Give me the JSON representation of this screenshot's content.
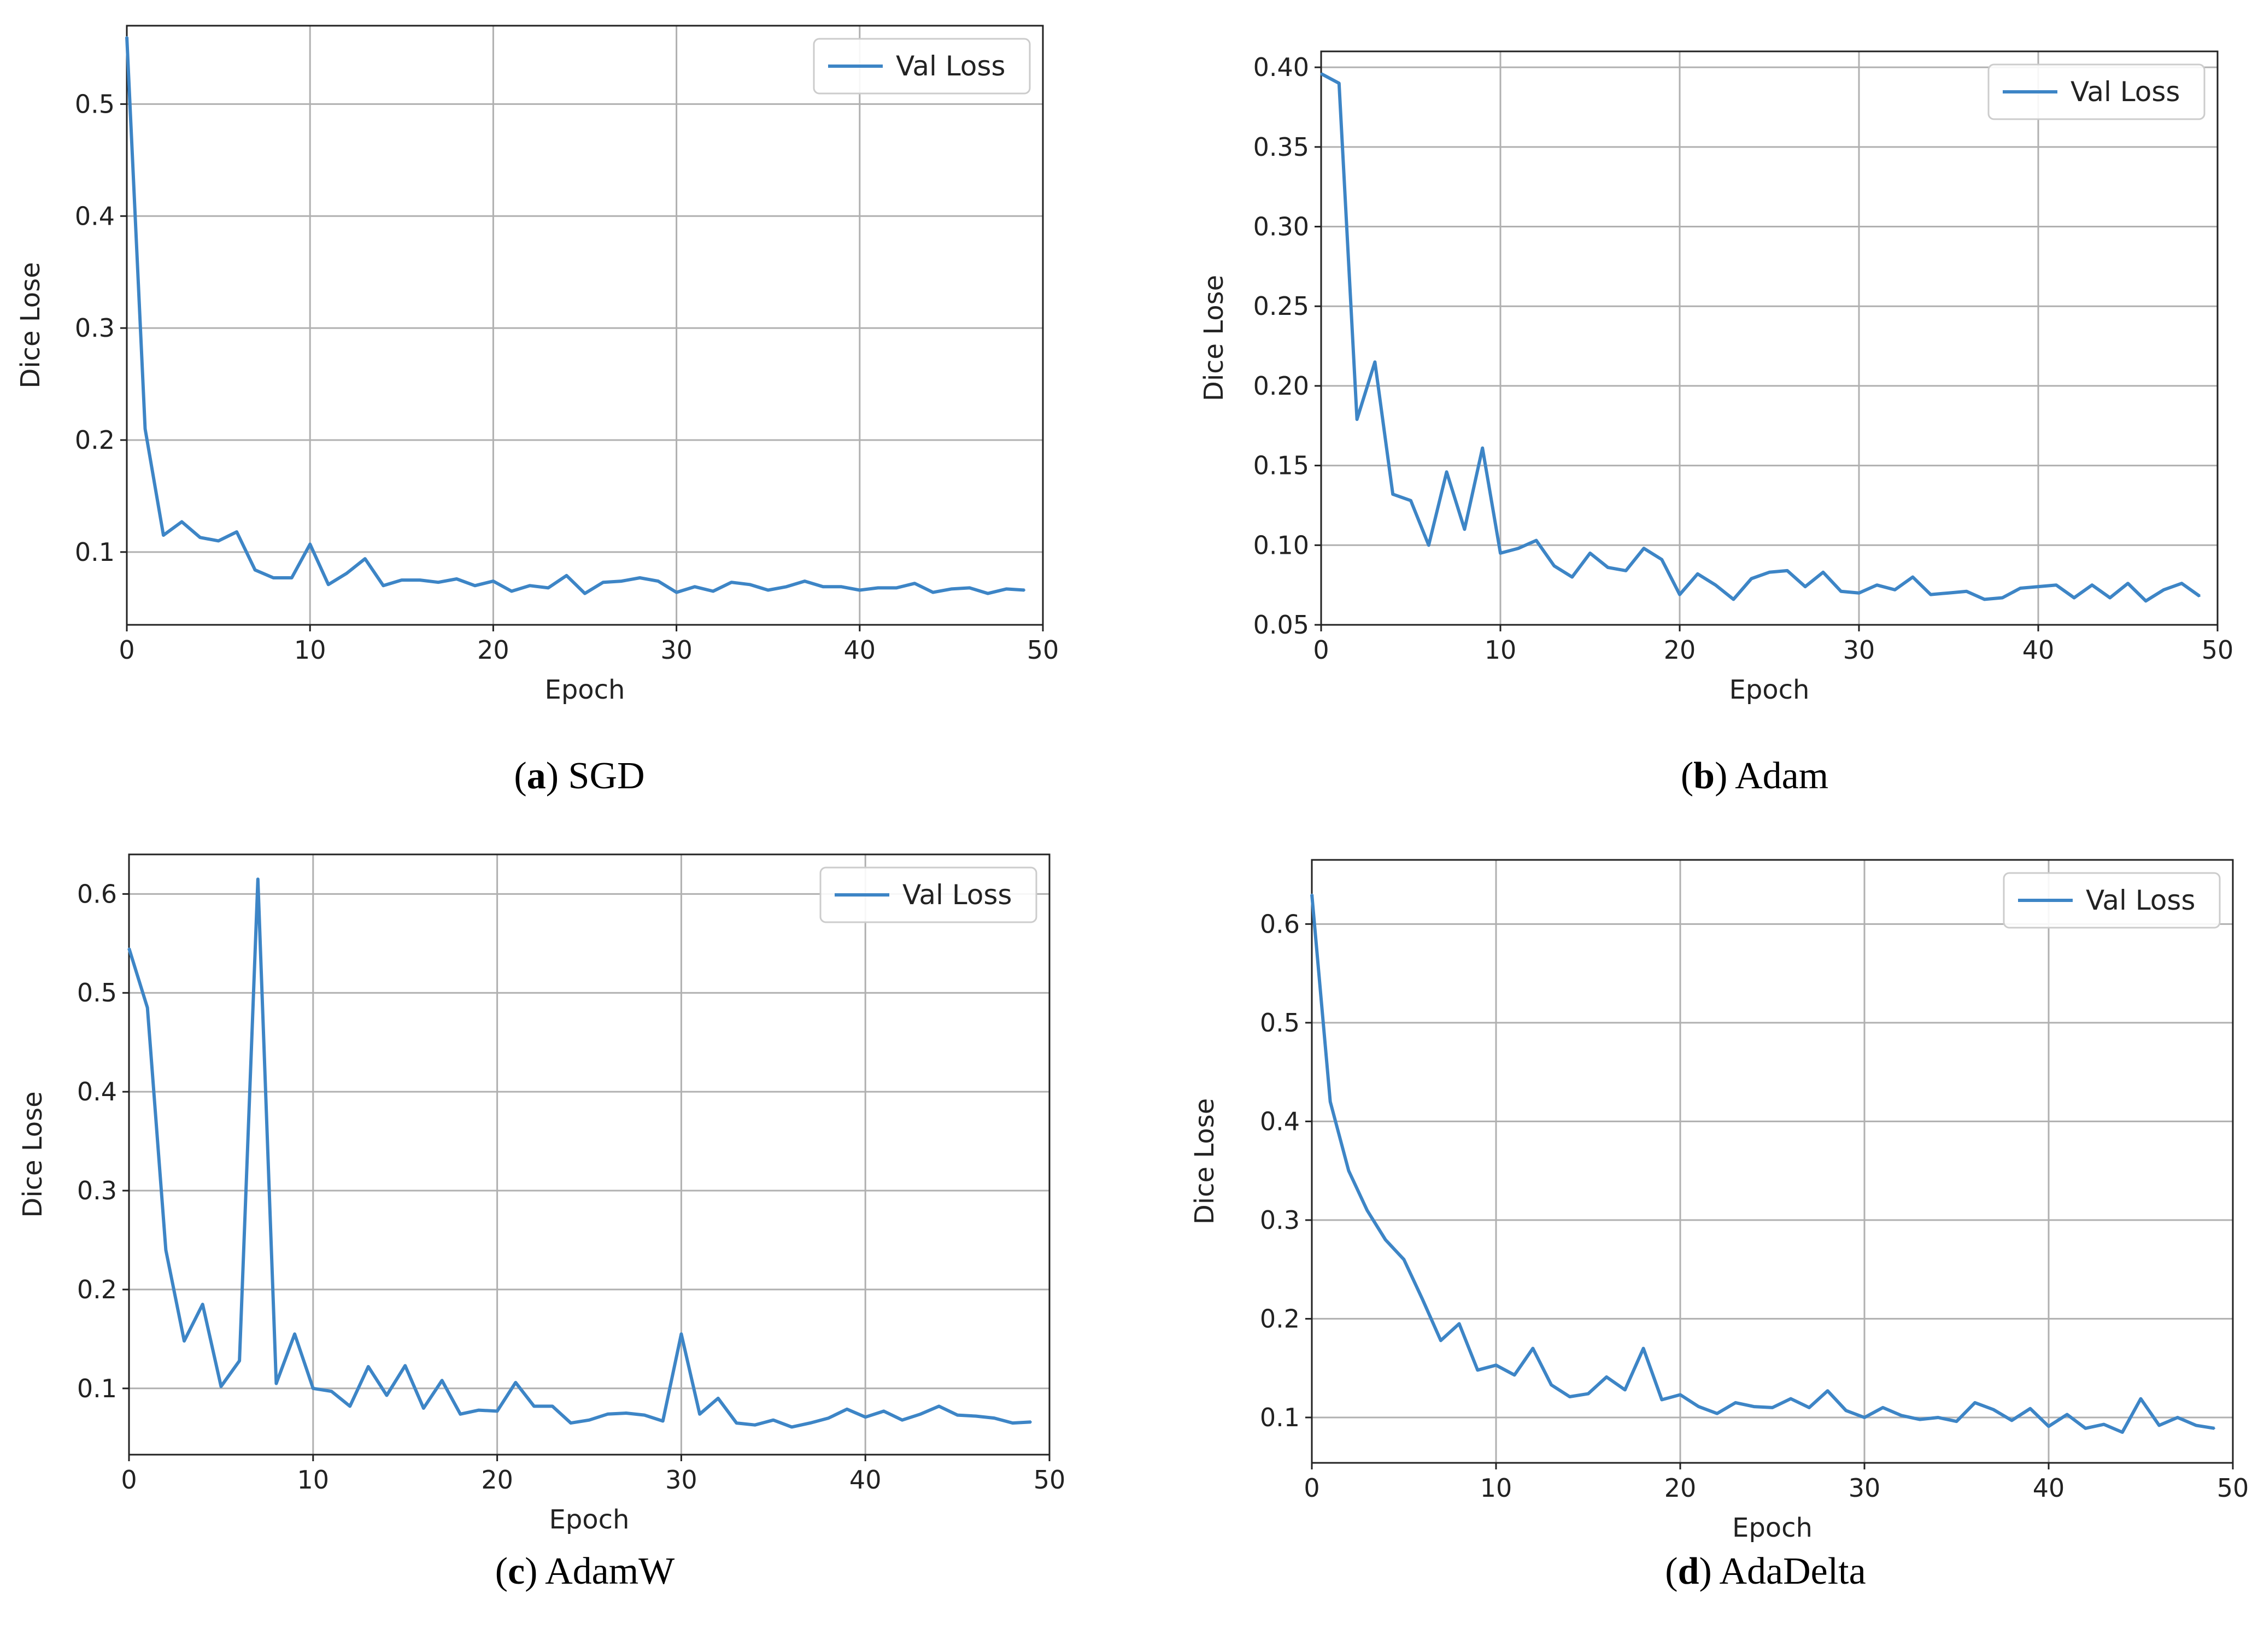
{
  "chart_data": [
    {
      "type": "line",
      "panel_letter": "a",
      "caption": "SGD",
      "xlabel": "Epoch",
      "ylabel": "Dice Lose",
      "xlim": [
        0,
        50
      ],
      "ylim": [
        0.035,
        0.57
      ],
      "xticks": [
        0,
        10,
        20,
        30,
        40,
        50
      ],
      "yticks": [
        0.1,
        0.2,
        0.3,
        0.4,
        0.5
      ],
      "ytick_labels": [
        "0.1",
        "0.2",
        "0.3",
        "0.4",
        "0.5"
      ],
      "grid": true,
      "legend_position": "top-right",
      "series": [
        {
          "name": "Val Loss",
          "color": "#3d85c6",
          "x": [
            0,
            1,
            2,
            3,
            4,
            5,
            6,
            7,
            8,
            9,
            10,
            11,
            12,
            13,
            14,
            15,
            16,
            17,
            18,
            19,
            20,
            21,
            22,
            23,
            24,
            25,
            26,
            27,
            28,
            29,
            30,
            31,
            32,
            33,
            34,
            35,
            36,
            37,
            38,
            39,
            40,
            41,
            42,
            43,
            44,
            45,
            46,
            47,
            48,
            49
          ],
          "y": [
            0.56,
            0.21,
            0.115,
            0.127,
            0.113,
            0.11,
            0.118,
            0.084,
            0.077,
            0.077,
            0.107,
            0.071,
            0.081,
            0.094,
            0.07,
            0.075,
            0.075,
            0.073,
            0.076,
            0.07,
            0.074,
            0.065,
            0.07,
            0.068,
            0.079,
            0.063,
            0.073,
            0.074,
            0.077,
            0.074,
            0.064,
            0.069,
            0.065,
            0.073,
            0.071,
            0.066,
            0.069,
            0.074,
            0.069,
            0.069,
            0.066,
            0.068,
            0.068,
            0.072,
            0.064,
            0.067,
            0.068,
            0.063,
            0.067,
            0.066
          ]
        }
      ]
    },
    {
      "type": "line",
      "panel_letter": "b",
      "caption": "Adam",
      "xlabel": "Epoch",
      "ylabel": "Dice Lose",
      "xlim": [
        0,
        50
      ],
      "ylim": [
        0.05,
        0.41
      ],
      "xticks": [
        0,
        10,
        20,
        30,
        40,
        50
      ],
      "yticks": [
        0.05,
        0.1,
        0.15,
        0.2,
        0.25,
        0.3,
        0.35,
        0.4
      ],
      "ytick_labels": [
        "0.05",
        "0.10",
        "0.15",
        "0.20",
        "0.25",
        "0.30",
        "0.35",
        "0.40"
      ],
      "grid": true,
      "legend_position": "top-right",
      "series": [
        {
          "name": "Val Loss",
          "color": "#3d85c6",
          "x": [
            0,
            1,
            2,
            3,
            4,
            5,
            6,
            7,
            8,
            9,
            10,
            11,
            12,
            13,
            14,
            15,
            16,
            17,
            18,
            19,
            20,
            21,
            22,
            23,
            24,
            25,
            26,
            27,
            28,
            29,
            30,
            31,
            32,
            33,
            34,
            35,
            36,
            37,
            38,
            39,
            40,
            41,
            42,
            43,
            44,
            45,
            46,
            47,
            48,
            49
          ],
          "y": [
            0.396,
            0.39,
            0.179,
            0.215,
            0.132,
            0.128,
            0.1,
            0.146,
            0.11,
            0.161,
            0.095,
            0.098,
            0.103,
            0.087,
            0.08,
            0.095,
            0.086,
            0.084,
            0.098,
            0.091,
            0.069,
            0.082,
            0.075,
            0.066,
            0.079,
            0.083,
            0.084,
            0.074,
            0.083,
            0.071,
            0.07,
            0.075,
            0.072,
            0.08,
            0.069,
            0.07,
            0.071,
            0.066,
            0.067,
            0.073,
            0.074,
            0.075,
            0.067,
            0.075,
            0.067,
            0.076,
            0.065,
            0.072,
            0.076,
            0.068
          ]
        }
      ]
    },
    {
      "type": "line",
      "panel_letter": "c",
      "caption": "AdamW",
      "xlabel": "Epoch",
      "ylabel": "Dice Lose",
      "xlim": [
        0,
        50
      ],
      "ylim": [
        0.033,
        0.64
      ],
      "xticks": [
        0,
        10,
        20,
        30,
        40,
        50
      ],
      "yticks": [
        0.1,
        0.2,
        0.3,
        0.4,
        0.5,
        0.6
      ],
      "ytick_labels": [
        "0.1",
        "0.2",
        "0.3",
        "0.4",
        "0.5",
        "0.6"
      ],
      "grid": true,
      "legend_position": "top-right",
      "series": [
        {
          "name": "Val Loss",
          "color": "#3d85c6",
          "x": [
            0,
            1,
            2,
            3,
            4,
            5,
            6,
            7,
            8,
            9,
            10,
            11,
            12,
            13,
            14,
            15,
            16,
            17,
            18,
            19,
            20,
            21,
            22,
            23,
            24,
            25,
            26,
            27,
            28,
            29,
            30,
            31,
            32,
            33,
            34,
            35,
            36,
            37,
            38,
            39,
            40,
            41,
            42,
            43,
            44,
            45,
            46,
            47,
            48,
            49
          ],
          "y": [
            0.545,
            0.485,
            0.24,
            0.148,
            0.185,
            0.102,
            0.128,
            0.615,
            0.105,
            0.155,
            0.1,
            0.097,
            0.082,
            0.122,
            0.093,
            0.123,
            0.08,
            0.108,
            0.074,
            0.078,
            0.077,
            0.106,
            0.082,
            0.082,
            0.065,
            0.068,
            0.074,
            0.075,
            0.073,
            0.067,
            0.155,
            0.074,
            0.09,
            0.065,
            0.063,
            0.068,
            0.061,
            0.065,
            0.07,
            0.079,
            0.071,
            0.077,
            0.068,
            0.074,
            0.082,
            0.073,
            0.072,
            0.07,
            0.065,
            0.066
          ]
        }
      ]
    },
    {
      "type": "line",
      "panel_letter": "d",
      "caption": "AdaDelta",
      "xlabel": "Epoch",
      "ylabel": "Dice Lose",
      "xlim": [
        0,
        50
      ],
      "ylim": [
        0.054,
        0.665
      ],
      "xticks": [
        0,
        10,
        20,
        30,
        40,
        50
      ],
      "yticks": [
        0.1,
        0.2,
        0.3,
        0.4,
        0.5,
        0.6
      ],
      "ytick_labels": [
        "0.1",
        "0.2",
        "0.3",
        "0.4",
        "0.5",
        "0.6"
      ],
      "grid": true,
      "legend_position": "top-right",
      "series": [
        {
          "name": "Val Loss",
          "color": "#3d85c6",
          "x": [
            0,
            1,
            2,
            3,
            4,
            5,
            6,
            7,
            8,
            9,
            10,
            11,
            12,
            13,
            14,
            15,
            16,
            17,
            18,
            19,
            20,
            21,
            22,
            23,
            24,
            25,
            26,
            27,
            28,
            29,
            30,
            31,
            32,
            33,
            34,
            35,
            36,
            37,
            38,
            39,
            40,
            41,
            42,
            43,
            44,
            45,
            46,
            47,
            48,
            49
          ],
          "y": [
            0.63,
            0.42,
            0.35,
            0.31,
            0.28,
            0.26,
            0.22,
            0.178,
            0.195,
            0.148,
            0.153,
            0.143,
            0.17,
            0.133,
            0.121,
            0.124,
            0.141,
            0.128,
            0.17,
            0.118,
            0.123,
            0.111,
            0.104,
            0.115,
            0.111,
            0.11,
            0.119,
            0.11,
            0.127,
            0.107,
            0.1,
            0.11,
            0.102,
            0.098,
            0.1,
            0.096,
            0.115,
            0.108,
            0.097,
            0.109,
            0.091,
            0.103,
            0.089,
            0.093,
            0.085,
            0.119,
            0.092,
            0.1,
            0.092,
            0.089
          ]
        }
      ]
    }
  ]
}
